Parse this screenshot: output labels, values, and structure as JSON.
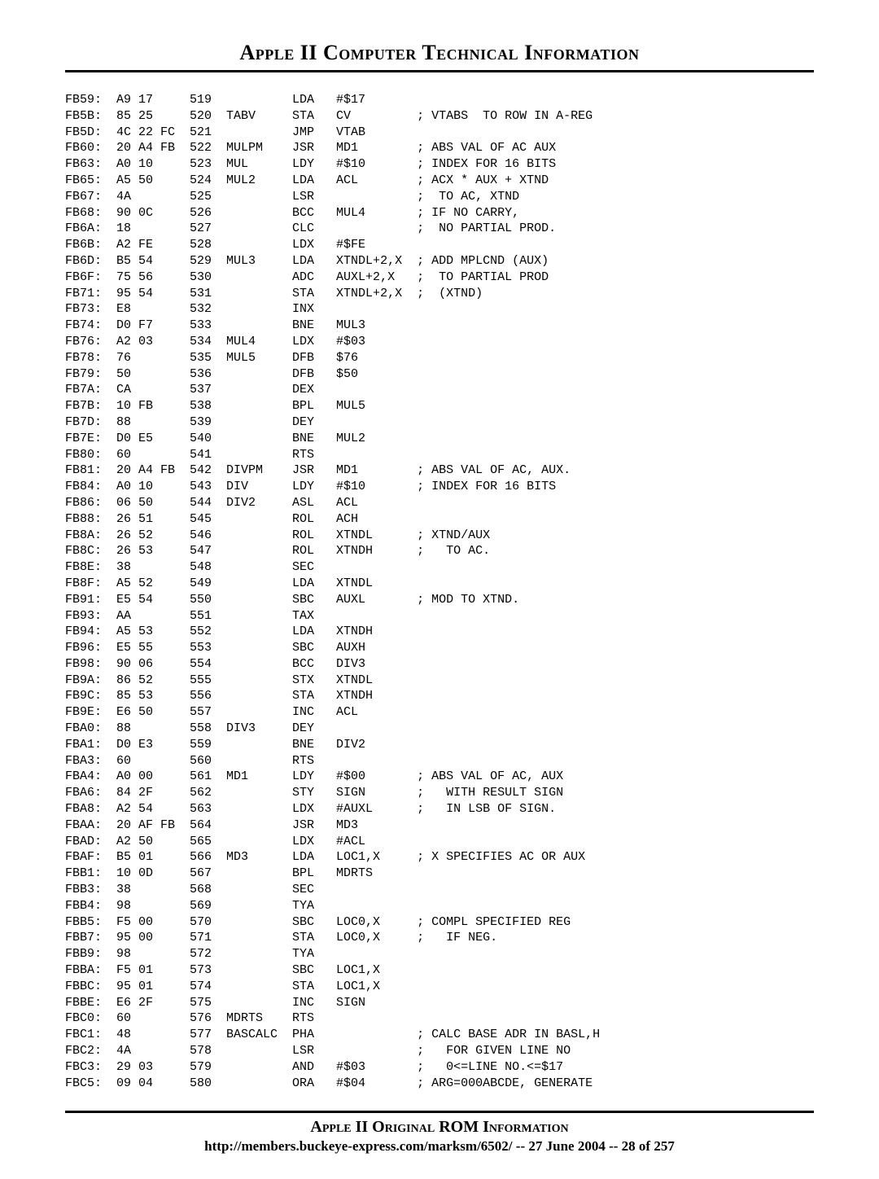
{
  "header": {
    "title": "Apple II Computer Technical Information"
  },
  "footer": {
    "line1": "Apple II Original ROM Information",
    "url": "http://members.buckeye-express.com/marksm/6502/",
    "date": "27 June 2004",
    "page": "28 of 257"
  },
  "rows": [
    {
      "addr": "FB59:",
      "hex": "A9 17",
      "line": "519",
      "label": "",
      "op": "LDA",
      "arg": "#$17",
      "cmt": ""
    },
    {
      "addr": "FB5B:",
      "hex": "85 25",
      "line": "520",
      "label": "TABV",
      "op": "STA",
      "arg": "CV",
      "cmt": "; VTABS  TO ROW IN A-REG"
    },
    {
      "addr": "FB5D:",
      "hex": "4C 22 FC",
      "line": "521",
      "label": "",
      "op": "JMP",
      "arg": "VTAB",
      "cmt": ""
    },
    {
      "addr": "FB60:",
      "hex": "20 A4 FB",
      "line": "522",
      "label": "MULPM",
      "op": "JSR",
      "arg": "MD1",
      "cmt": "; ABS VAL OF AC AUX"
    },
    {
      "addr": "FB63:",
      "hex": "A0 10",
      "line": "523",
      "label": "MUL",
      "op": "LDY",
      "arg": "#$10",
      "cmt": "; INDEX FOR 16 BITS"
    },
    {
      "addr": "FB65:",
      "hex": "A5 50",
      "line": "524",
      "label": "MUL2",
      "op": "LDA",
      "arg": "ACL",
      "cmt": "; ACX * AUX + XTND"
    },
    {
      "addr": "FB67:",
      "hex": "4A",
      "line": "525",
      "label": "",
      "op": "LSR",
      "arg": "",
      "cmt": ";  TO AC, XTND"
    },
    {
      "addr": "FB68:",
      "hex": "90 0C",
      "line": "526",
      "label": "",
      "op": "BCC",
      "arg": "MUL4",
      "cmt": "; IF NO CARRY,"
    },
    {
      "addr": "FB6A:",
      "hex": "18",
      "line": "527",
      "label": "",
      "op": "CLC",
      "arg": "",
      "cmt": ";  NO PARTIAL PROD."
    },
    {
      "addr": "FB6B:",
      "hex": "A2 FE",
      "line": "528",
      "label": "",
      "op": "LDX",
      "arg": "#$FE",
      "cmt": ""
    },
    {
      "addr": "FB6D:",
      "hex": "B5 54",
      "line": "529",
      "label": "MUL3",
      "op": "LDA",
      "arg": "XTNDL+2,X",
      "cmt": "; ADD MPLCND (AUX)"
    },
    {
      "addr": "FB6F:",
      "hex": "75 56",
      "line": "530",
      "label": "",
      "op": "ADC",
      "arg": "AUXL+2,X",
      "cmt": ";  TO PARTIAL PROD"
    },
    {
      "addr": "FB71:",
      "hex": "95 54",
      "line": "531",
      "label": "",
      "op": "STA",
      "arg": "XTNDL+2,X",
      "cmt": ";  (XTND)"
    },
    {
      "addr": "FB73:",
      "hex": "E8",
      "line": "532",
      "label": "",
      "op": "INX",
      "arg": "",
      "cmt": ""
    },
    {
      "addr": "FB74:",
      "hex": "D0 F7",
      "line": "533",
      "label": "",
      "op": "BNE",
      "arg": "MUL3",
      "cmt": ""
    },
    {
      "addr": "FB76:",
      "hex": "A2 03",
      "line": "534",
      "label": "MUL4",
      "op": "LDX",
      "arg": "#$03",
      "cmt": ""
    },
    {
      "addr": "FB78:",
      "hex": "76",
      "line": "535",
      "label": "MUL5",
      "op": "DFB",
      "arg": "$76",
      "cmt": ""
    },
    {
      "addr": "FB79:",
      "hex": "50",
      "line": "536",
      "label": "",
      "op": "DFB",
      "arg": "$50",
      "cmt": ""
    },
    {
      "addr": "FB7A:",
      "hex": "CA",
      "line": "537",
      "label": "",
      "op": "DEX",
      "arg": "",
      "cmt": ""
    },
    {
      "addr": "FB7B:",
      "hex": "10 FB",
      "line": "538",
      "label": "",
      "op": "BPL",
      "arg": "MUL5",
      "cmt": ""
    },
    {
      "addr": "FB7D:",
      "hex": "88",
      "line": "539",
      "label": "",
      "op": "DEY",
      "arg": "",
      "cmt": ""
    },
    {
      "addr": "FB7E:",
      "hex": "D0 E5",
      "line": "540",
      "label": "",
      "op": "BNE",
      "arg": "MUL2",
      "cmt": ""
    },
    {
      "addr": "FB80:",
      "hex": "60",
      "line": "541",
      "label": "",
      "op": "RTS",
      "arg": "",
      "cmt": ""
    },
    {
      "addr": "FB81:",
      "hex": "20 A4 FB",
      "line": "542",
      "label": "DIVPM",
      "op": "JSR",
      "arg": "MD1",
      "cmt": "; ABS VAL OF AC, AUX."
    },
    {
      "addr": "FB84:",
      "hex": "A0 10",
      "line": "543",
      "label": "DIV",
      "op": "LDY",
      "arg": "#$10",
      "cmt": "; INDEX FOR 16 BITS"
    },
    {
      "addr": "FB86:",
      "hex": "06 50",
      "line": "544",
      "label": "DIV2",
      "op": "ASL",
      "arg": "ACL",
      "cmt": ""
    },
    {
      "addr": "FB88:",
      "hex": "26 51",
      "line": "545",
      "label": "",
      "op": "ROL",
      "arg": "ACH",
      "cmt": ""
    },
    {
      "addr": "FB8A:",
      "hex": "26 52",
      "line": "546",
      "label": "",
      "op": "ROL",
      "arg": "XTNDL",
      "cmt": "; XTND/AUX"
    },
    {
      "addr": "FB8C:",
      "hex": "26 53",
      "line": "547",
      "label": "",
      "op": "ROL",
      "arg": "XTNDH",
      "cmt": ";   TO AC."
    },
    {
      "addr": "FB8E:",
      "hex": "38",
      "line": "548",
      "label": "",
      "op": "SEC",
      "arg": "",
      "cmt": ""
    },
    {
      "addr": "FB8F:",
      "hex": "A5 52",
      "line": "549",
      "label": "",
      "op": "LDA",
      "arg": "XTNDL",
      "cmt": ""
    },
    {
      "addr": "FB91:",
      "hex": "E5 54",
      "line": "550",
      "label": "",
      "op": "SBC",
      "arg": "AUXL",
      "cmt": "; MOD TO XTND."
    },
    {
      "addr": "FB93:",
      "hex": "AA",
      "line": "551",
      "label": "",
      "op": "TAX",
      "arg": "",
      "cmt": ""
    },
    {
      "addr": "FB94:",
      "hex": "A5 53",
      "line": "552",
      "label": "",
      "op": "LDA",
      "arg": "XTNDH",
      "cmt": ""
    },
    {
      "addr": "FB96:",
      "hex": "E5 55",
      "line": "553",
      "label": "",
      "op": "SBC",
      "arg": "AUXH",
      "cmt": ""
    },
    {
      "addr": "FB98:",
      "hex": "90 06",
      "line": "554",
      "label": "",
      "op": "BCC",
      "arg": "DIV3",
      "cmt": ""
    },
    {
      "addr": "FB9A:",
      "hex": "86 52",
      "line": "555",
      "label": "",
      "op": "STX",
      "arg": "XTNDL",
      "cmt": ""
    },
    {
      "addr": "FB9C:",
      "hex": "85 53",
      "line": "556",
      "label": "",
      "op": "STA",
      "arg": "XTNDH",
      "cmt": ""
    },
    {
      "addr": "FB9E:",
      "hex": "E6 50",
      "line": "557",
      "label": "",
      "op": "INC",
      "arg": "ACL",
      "cmt": ""
    },
    {
      "addr": "FBA0:",
      "hex": "88",
      "line": "558",
      "label": "DIV3",
      "op": "DEY",
      "arg": "",
      "cmt": ""
    },
    {
      "addr": "FBA1:",
      "hex": "D0 E3",
      "line": "559",
      "label": "",
      "op": "BNE",
      "arg": "DIV2",
      "cmt": ""
    },
    {
      "addr": "FBA3:",
      "hex": "60",
      "line": "560",
      "label": "",
      "op": "RTS",
      "arg": "",
      "cmt": ""
    },
    {
      "addr": "FBA4:",
      "hex": "A0 00",
      "line": "561",
      "label": "MD1",
      "op": "LDY",
      "arg": "#$00",
      "cmt": "; ABS VAL OF AC, AUX"
    },
    {
      "addr": "FBA6:",
      "hex": "84 2F",
      "line": "562",
      "label": "",
      "op": "STY",
      "arg": "SIGN",
      "cmt": ";   WITH RESULT SIGN"
    },
    {
      "addr": "FBA8:",
      "hex": "A2 54",
      "line": "563",
      "label": "",
      "op": "LDX",
      "arg": "#AUXL",
      "cmt": ";   IN LSB OF SIGN."
    },
    {
      "addr": "FBAA:",
      "hex": "20 AF FB",
      "line": "564",
      "label": "",
      "op": "JSR",
      "arg": "MD3",
      "cmt": ""
    },
    {
      "addr": "FBAD:",
      "hex": "A2 50",
      "line": "565",
      "label": "",
      "op": "LDX",
      "arg": "#ACL",
      "cmt": ""
    },
    {
      "addr": "FBAF:",
      "hex": "B5 01",
      "line": "566",
      "label": "MD3",
      "op": "LDA",
      "arg": "LOC1,X",
      "cmt": "; X SPECIFIES AC OR AUX"
    },
    {
      "addr": "FBB1:",
      "hex": "10 0D",
      "line": "567",
      "label": "",
      "op": "BPL",
      "arg": "MDRTS",
      "cmt": ""
    },
    {
      "addr": "FBB3:",
      "hex": "38",
      "line": "568",
      "label": "",
      "op": "SEC",
      "arg": "",
      "cmt": ""
    },
    {
      "addr": "FBB4:",
      "hex": "98",
      "line": "569",
      "label": "",
      "op": "TYA",
      "arg": "",
      "cmt": ""
    },
    {
      "addr": "FBB5:",
      "hex": "F5 00",
      "line": "570",
      "label": "",
      "op": "SBC",
      "arg": "LOC0,X",
      "cmt": "; COMPL SPECIFIED REG"
    },
    {
      "addr": "FBB7:",
      "hex": "95 00",
      "line": "571",
      "label": "",
      "op": "STA",
      "arg": "LOC0,X",
      "cmt": ";   IF NEG."
    },
    {
      "addr": "FBB9:",
      "hex": "98",
      "line": "572",
      "label": "",
      "op": "TYA",
      "arg": "",
      "cmt": ""
    },
    {
      "addr": "FBBA:",
      "hex": "F5 01",
      "line": "573",
      "label": "",
      "op": "SBC",
      "arg": "LOC1,X",
      "cmt": ""
    },
    {
      "addr": "FBBC:",
      "hex": "95 01",
      "line": "574",
      "label": "",
      "op": "STA",
      "arg": "LOC1,X",
      "cmt": ""
    },
    {
      "addr": "FBBE:",
      "hex": "E6 2F",
      "line": "575",
      "label": "",
      "op": "INC",
      "arg": "SIGN",
      "cmt": ""
    },
    {
      "addr": "FBC0:",
      "hex": "60",
      "line": "576",
      "label": "MDRTS",
      "op": "RTS",
      "arg": "",
      "cmt": ""
    },
    {
      "addr": "FBC1:",
      "hex": "48",
      "line": "577",
      "label": "BASCALC",
      "op": "PHA",
      "arg": "",
      "cmt": "; CALC BASE ADR IN BASL,H"
    },
    {
      "addr": "FBC2:",
      "hex": "4A",
      "line": "578",
      "label": "",
      "op": "LSR",
      "arg": "",
      "cmt": ";   FOR GIVEN LINE NO"
    },
    {
      "addr": "FBC3:",
      "hex": "29 03",
      "line": "579",
      "label": "",
      "op": "AND",
      "arg": "#$03",
      "cmt": ";   0<=LINE NO.<=$17"
    },
    {
      "addr": "FBC5:",
      "hex": "09 04",
      "line": "580",
      "label": "",
      "op": "ORA",
      "arg": "#$04",
      "cmt": "; ARG=000ABCDE, GENERATE"
    }
  ],
  "col_widths": {
    "addr": 7,
    "hex": 10,
    "line": 5,
    "label": 9,
    "op": 6,
    "arg": 11
  }
}
